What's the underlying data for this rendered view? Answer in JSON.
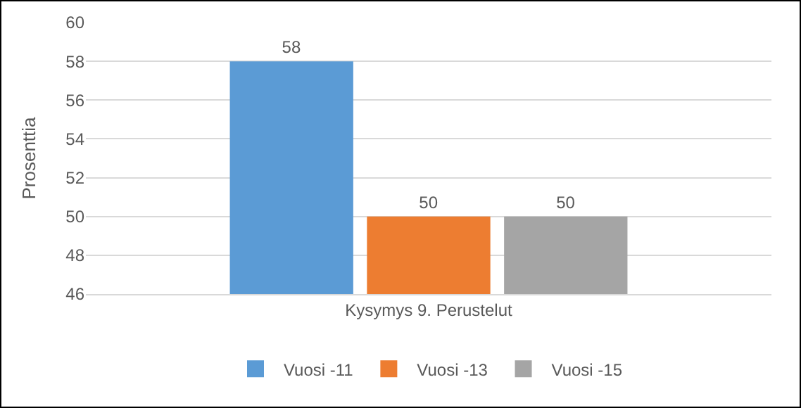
{
  "chart_data": {
    "type": "bar",
    "ylabel": "Prosenttia",
    "categories": [
      "Kysymys 9. Perustelut"
    ],
    "series": [
      {
        "name": "Vuosi -11",
        "color": "#5b9bd5",
        "values": [
          58
        ]
      },
      {
        "name": "Vuosi -13",
        "color": "#ed7d31",
        "values": [
          50
        ]
      },
      {
        "name": "Vuosi -15",
        "color": "#a5a5a5",
        "values": [
          50
        ]
      }
    ],
    "ylim": [
      46,
      60
    ],
    "yticks": [
      46,
      48,
      50,
      52,
      54,
      56,
      58,
      60
    ],
    "grid": "y",
    "legend": "bottom",
    "data_labels": true
  }
}
